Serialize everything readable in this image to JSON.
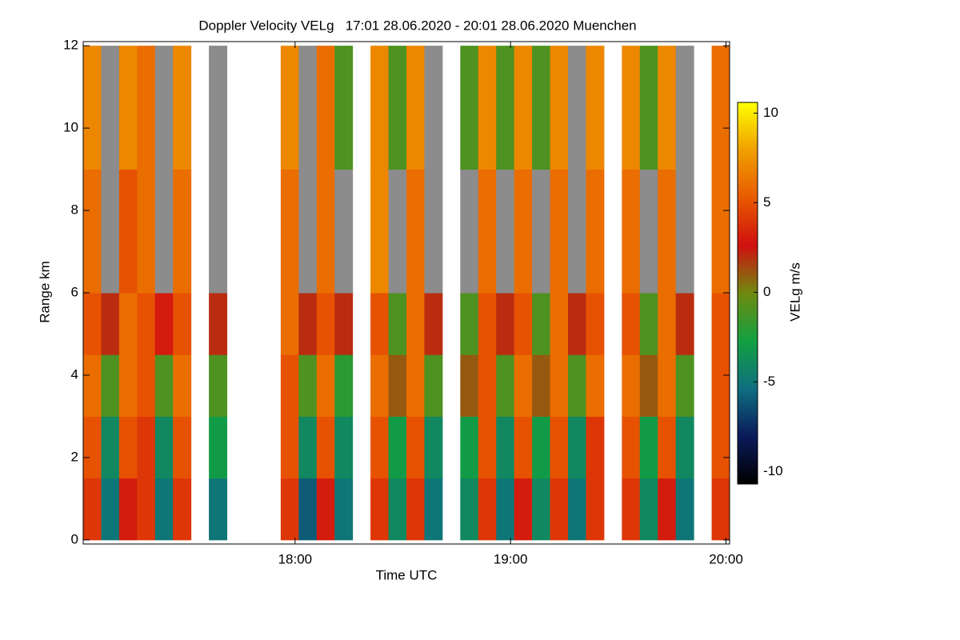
{
  "chart_data": {
    "type": "heatmap",
    "title": "Doppler Velocity VELg   17:01 28.06.2020 - 20:01 28.06.2020 Muenchen",
    "x_label": "Time UTC",
    "y_label": "Range km",
    "colorbar_label": "VELg m/s",
    "xlim": [
      1021,
      1201
    ],
    "xticks": [
      {
        "value": 1080,
        "label": "18:00"
      },
      {
        "value": 1140,
        "label": "19:00"
      },
      {
        "value": 1200,
        "label": "20:00"
      }
    ],
    "ylim": [
      -0.1,
      12.1
    ],
    "yticks": [
      0,
      2,
      4,
      6,
      8,
      10,
      12
    ],
    "zlim": [
      -10.7,
      10.6
    ],
    "zticks": [
      -10,
      -5,
      0,
      5,
      10
    ],
    "colorscale": [
      "#000000",
      "#0a1a5a",
      "#0f6f80",
      "#12a040",
      "#6f8a10",
      "#d01010",
      "#e85a00",
      "#f0a000",
      "#ffff00"
    ],
    "noise_color": "#8c8c8c",
    "x_bins": [
      1021,
      1026,
      1031,
      1036,
      1041,
      1046,
      1051,
      1056,
      1061,
      1066,
      1071,
      1076,
      1081,
      1086,
      1091,
      1096,
      1101,
      1106,
      1111,
      1116,
      1121,
      1126,
      1131,
      1136,
      1141,
      1146,
      1151,
      1156,
      1161,
      1166,
      1171,
      1176,
      1181,
      1186,
      1191,
      1196,
      1201
    ],
    "y_bins": [
      0,
      1.5,
      3,
      4.5,
      6,
      9,
      12
    ],
    "values": [
      [
        4,
        5,
        6,
        5,
        6,
        7
      ],
      [
        -5,
        -4,
        -1,
        2,
        null,
        null
      ],
      [
        3,
        5,
        6,
        6,
        5,
        7
      ],
      [
        4,
        4,
        5,
        5,
        6,
        6
      ],
      [
        -5,
        -4,
        -1,
        3,
        null,
        null
      ],
      [
        4,
        5,
        6,
        5,
        6,
        7
      ],
      null,
      [
        -5,
        -3,
        -1,
        2,
        null,
        null
      ],
      null,
      null,
      null,
      [
        4,
        5,
        5,
        6,
        6,
        7
      ],
      [
        -6,
        -4,
        -1,
        2,
        null,
        null
      ],
      [
        3,
        5,
        6,
        5,
        6,
        6
      ],
      [
        -5,
        -4,
        -2,
        2,
        null,
        -1
      ],
      null,
      [
        4,
        5,
        6,
        5,
        7,
        7
      ],
      [
        -4,
        -3,
        1,
        -1,
        null,
        -1
      ],
      [
        4,
        5,
        6,
        6,
        6,
        7
      ],
      [
        -5,
        -4,
        -1,
        2,
        null,
        null
      ],
      null,
      [
        -4,
        -3,
        1,
        -1,
        null,
        -1
      ],
      [
        4,
        5,
        5,
        5,
        6,
        7
      ],
      [
        -5,
        -4,
        -1,
        2,
        null,
        -1
      ],
      [
        3,
        5,
        6,
        5,
        6,
        7
      ],
      [
        -4,
        -3,
        1,
        -1,
        null,
        -1
      ],
      [
        4,
        5,
        6,
        6,
        6,
        7
      ],
      [
        -5,
        -4,
        -1,
        2,
        null,
        null
      ],
      [
        4,
        4,
        6,
        5,
        6,
        7
      ],
      null,
      [
        4,
        5,
        6,
        5,
        6,
        7
      ],
      [
        -4,
        -3,
        1,
        -1,
        null,
        -1
      ],
      [
        3,
        5,
        6,
        6,
        6,
        7
      ],
      [
        -5,
        -4,
        -1,
        2,
        null,
        null
      ],
      null,
      [
        4,
        5,
        5,
        5,
        6,
        6
      ]
    ]
  }
}
